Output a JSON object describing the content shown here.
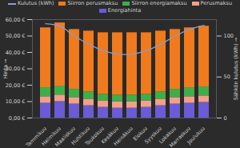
{
  "chart_data": {
    "type": "bar",
    "stacked": true,
    "grid": false,
    "legend": "top",
    "y_label": "Hinta",
    "y2_label": "Sähkön kulutus (kWh)",
    "categories": [
      "Tammikuu",
      "Helmikuu",
      "Maaliskuu",
      "Huhtikuu",
      "Toukokuu",
      "Kesäkuu",
      "Heinäkuu",
      "Elokuu",
      "Syyskuu",
      "Lokakuu",
      "Marraskuu",
      "Joulukuu"
    ],
    "ylim": [
      0,
      60
    ],
    "yticks": [
      {
        "value": 0,
        "label": "0,00 €"
      },
      {
        "value": 10,
        "label": "10,00 €"
      },
      {
        "value": 20,
        "label": "20,00 €"
      },
      {
        "value": 30,
        "label": "30,00 €"
      },
      {
        "value": 40,
        "label": "40,00 €"
      },
      {
        "value": 50,
        "label": "50,00 €"
      },
      {
        "value": 60,
        "label": "60,00 €"
      }
    ],
    "y2lim": [
      0,
      120
    ],
    "y2ticks": [
      0,
      50,
      100
    ],
    "series": [
      {
        "name": "Kulutus (kWh)",
        "type": "line",
        "axis": "y2",
        "color": "#7f9fd8",
        "values": [
          115,
          112,
          100,
          90,
          82,
          78,
          78,
          82,
          90,
          100,
          108,
          113
        ]
      },
      {
        "name": "Siirron perusmaksu",
        "color": "#f07a1c",
        "values": [
          36.5,
          38.5,
          36.5,
          37,
          37.5,
          38,
          38,
          37.5,
          37,
          36.5,
          36.5,
          37
        ]
      },
      {
        "name": "Siirron energiamaksu",
        "color": "#3fae49",
        "values": [
          5.5,
          5.5,
          5,
          4.5,
          4,
          4,
          4,
          4,
          4.5,
          5,
          5.5,
          5.5
        ]
      },
      {
        "name": "Perusmaksu",
        "color": "#f2a08a",
        "values": [
          4,
          4,
          4,
          4,
          4,
          4,
          4,
          4,
          4,
          4,
          4,
          4
        ]
      },
      {
        "name": "Energiahinta",
        "color": "#6b5bd6",
        "values": [
          9,
          10,
          8.5,
          7.5,
          6.5,
          6,
          6,
          6.5,
          7.5,
          8.5,
          9,
          9.5
        ]
      }
    ]
  }
}
